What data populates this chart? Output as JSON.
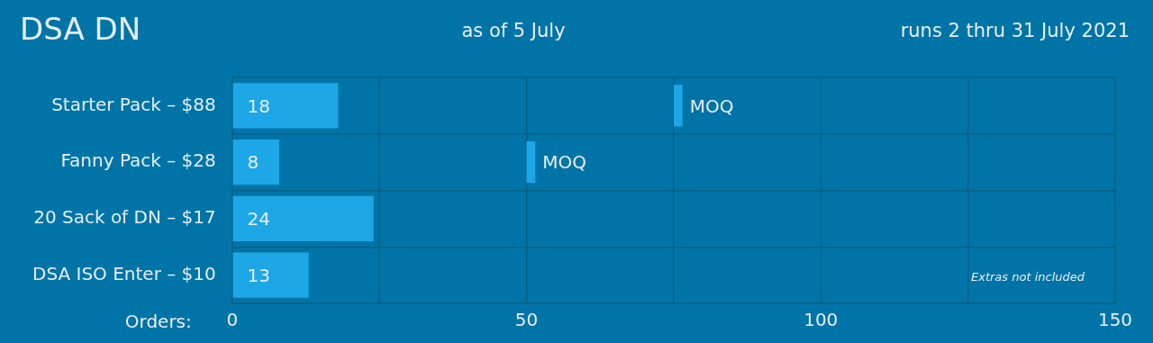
{
  "chart_data": {
    "type": "bar",
    "orientation": "horizontal",
    "title": "DSA DN",
    "subtitle": "as of 5 July",
    "xlabel": "Orders:",
    "categories": [
      "Starter Pack – $88",
      "Fanny Pack – $28",
      "20 Sack of DN – $17",
      "DSA ISO Enter – $10"
    ],
    "series": [
      {
        "values": [
          18,
          8,
          24,
          13
        ],
        "color": "#1ea7e6",
        "value_labels": [
          "18",
          "8",
          "24",
          "13"
        ]
      },
      {
        "name": "MOQ",
        "values": [
          1.5,
          1.5,
          null,
          null
        ],
        "base": [
          75,
          50,
          null,
          null
        ],
        "color": "#1ea7e6"
      }
    ],
    "xlim": [
      0,
      150
    ],
    "xticks": [
      0,
      {
        "value": 25,
        "label": null
      },
      50,
      {
        "value": 75,
        "label": null
      },
      100,
      {
        "value": 125,
        "label": null
      },
      150
    ],
    "grid": true,
    "legend": false,
    "annotations": [
      "runs 2 thru 31 July 2021",
      "Extras not included"
    ]
  }
}
